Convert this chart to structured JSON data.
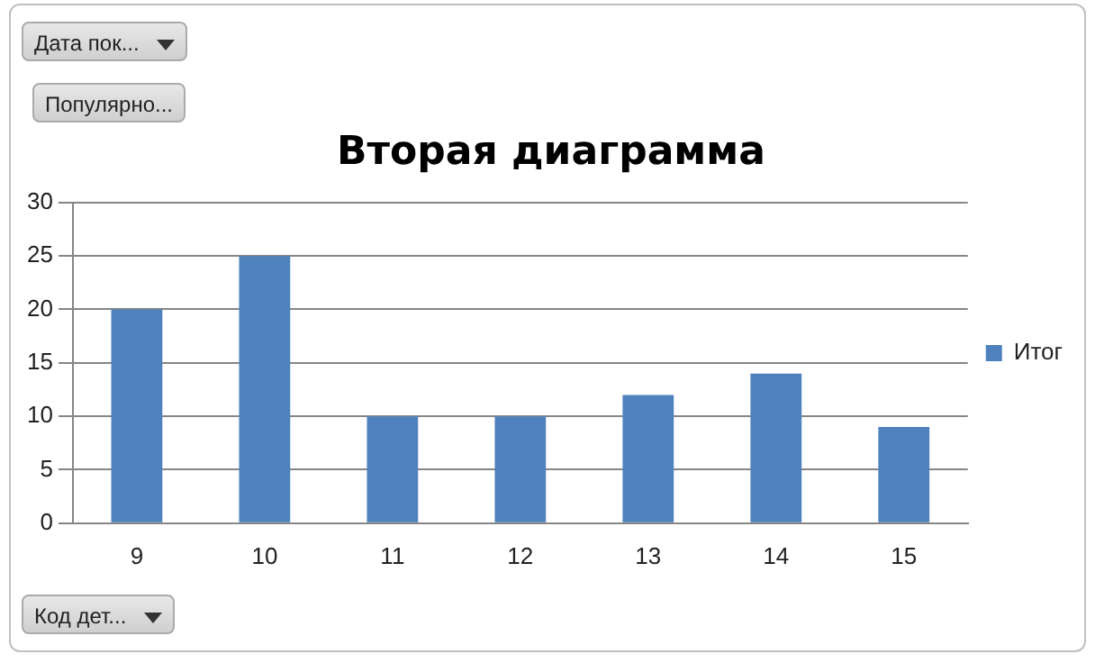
{
  "chart_data": {
    "type": "bar",
    "title": "Вторая диаграмма",
    "categories": [
      "9",
      "10",
      "11",
      "12",
      "13",
      "14",
      "15"
    ],
    "series": [
      {
        "name": "Итог",
        "color": "#4f81bd",
        "values": [
          20,
          25,
          10,
          10,
          12,
          14,
          9
        ]
      }
    ],
    "ylim": [
      0,
      30
    ],
    "yticks": [
      0,
      5,
      10,
      15,
      20,
      25,
      30
    ],
    "grid": "y",
    "legend": "right",
    "annotations": [
      "Дата пок...",
      "Популярно...",
      "Код дет..."
    ]
  }
}
